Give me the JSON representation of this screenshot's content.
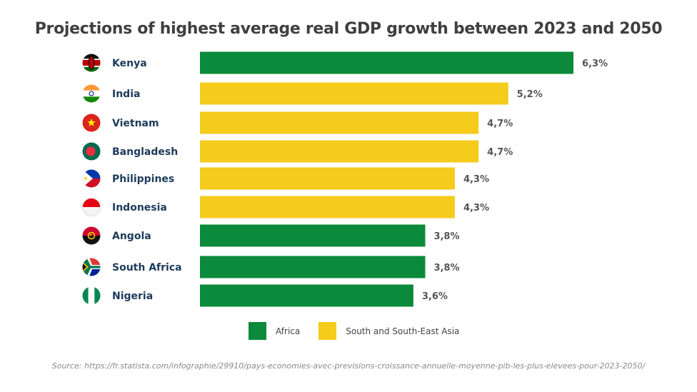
{
  "chart_data": {
    "type": "bar",
    "orientation": "horizontal",
    "title": "Projections of highest average real GDP growth between 2023 and 2050",
    "categories": [
      "Kenya",
      "India",
      "Vietnam",
      "Bangladesh",
      "Philippines",
      "Indonesia",
      "Angola",
      "South Africa",
      "Nigeria"
    ],
    "values": [
      6.3,
      5.2,
      4.7,
      4.7,
      4.3,
      4.3,
      3.8,
      3.8,
      3.6
    ],
    "value_labels": [
      "6,3%",
      "5,2%",
      "4,7%",
      "4,7%",
      "4,3%",
      "4,3%",
      "3,8%",
      "3,8%",
      "3,6%"
    ],
    "groups": [
      "Africa",
      "South and South-East Asia",
      "South and South-East Asia",
      "South and South-East Asia",
      "South and South-East Asia",
      "South and South-East Asia",
      "Africa",
      "Africa",
      "Africa"
    ],
    "legend": [
      {
        "name": "Africa",
        "color": "#0a8a3a"
      },
      {
        "name": "South and South-East Asia",
        "color": "#f5cb1c"
      }
    ],
    "legend_position": "bottom",
    "flags": [
      "kenya-flag-icon",
      "india-flag-icon",
      "vietnam-flag-icon",
      "bangladesh-flag-icon",
      "philippines-flag-icon",
      "indonesia-flag-icon",
      "angola-flag-icon",
      "south-africa-flag-icon",
      "nigeria-flag-icon"
    ],
    "xlim": [
      0,
      6.3
    ],
    "grid": false
  },
  "source": "Source: https://fr.statista.com/infographie/29910/pays-economies-avec-previsions-croissance-annuelle-moyenne-pib-les-plus-elevees-pour-2023-2050/",
  "colors": {
    "africa": "#0a8a3a",
    "asia": "#f5cb1c",
    "country_label": "#1d3b5a",
    "value_label": "#555555"
  }
}
